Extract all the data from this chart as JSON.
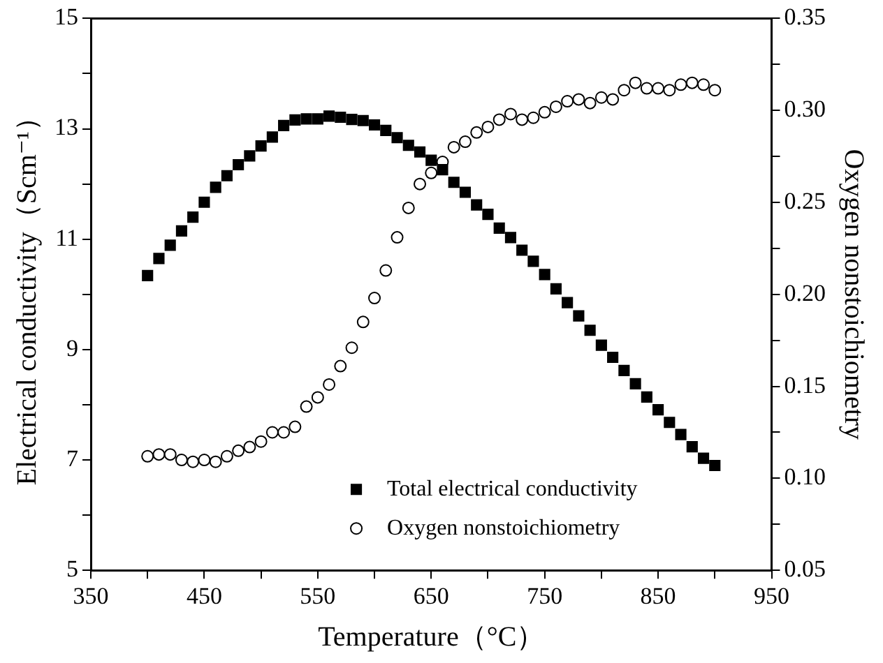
{
  "chart_data": {
    "type": "scatter",
    "xlabel": "Temperature（°C）",
    "ylabel": "Electrical conductivity（Scm⁻¹）",
    "y2label": "Oxygen nonstoichiometry",
    "x": [
      400,
      410,
      420,
      430,
      440,
      450,
      460,
      470,
      480,
      490,
      500,
      510,
      520,
      530,
      540,
      550,
      560,
      570,
      580,
      590,
      600,
      610,
      620,
      630,
      640,
      650,
      660,
      670,
      680,
      690,
      700,
      710,
      720,
      730,
      740,
      750,
      760,
      770,
      780,
      790,
      800,
      810,
      820,
      830,
      840,
      850,
      860,
      870,
      880,
      890,
      900
    ],
    "series": [
      {
        "name": "Total electrical conductivity",
        "color": "#000000",
        "marker": "square",
        "values": [
          10.34,
          10.65,
          10.89,
          11.15,
          11.4,
          11.67,
          11.94,
          12.15,
          12.35,
          12.51,
          12.69,
          12.85,
          13.06,
          13.16,
          13.18,
          13.18,
          13.23,
          13.21,
          13.17,
          13.15,
          13.07,
          12.97,
          12.84,
          12.7,
          12.58,
          12.43,
          12.26,
          12.03,
          11.85,
          11.62,
          11.45,
          11.2,
          11.03,
          10.8,
          10.6,
          10.36,
          10.1,
          9.85,
          9.61,
          9.35,
          9.08,
          8.86,
          8.62,
          8.38,
          8.14,
          7.91,
          7.68,
          7.46,
          7.24,
          7.03,
          6.9
        ]
      },
      {
        "name": "Oxygen nonstoichiometry",
        "color": "#000000",
        "marker": "circle",
        "axis": "y2",
        "values": [
          0.112,
          0.113,
          0.113,
          0.11,
          0.109,
          0.11,
          0.109,
          0.112,
          0.115,
          0.117,
          0.12,
          0.125,
          0.125,
          0.128,
          0.139,
          0.144,
          0.151,
          0.161,
          0.171,
          0.185,
          0.198,
          0.213,
          0.231,
          0.247,
          0.26,
          0.266,
          0.272,
          0.28,
          0.283,
          0.288,
          0.291,
          0.295,
          0.298,
          0.295,
          0.296,
          0.299,
          0.302,
          0.305,
          0.306,
          0.304,
          0.307,
          0.306,
          0.311,
          0.315,
          0.312,
          0.312,
          0.311,
          0.314,
          0.315,
          0.314,
          0.311
        ]
      }
    ],
    "xlim": [
      350,
      950
    ],
    "xticks": [
      350,
      {
        "value": 400,
        "label": null
      },
      450,
      {
        "value": 500,
        "label": null
      },
      550,
      {
        "value": 600,
        "label": null
      },
      650,
      {
        "value": 700,
        "label": null
      },
      750,
      {
        "value": 800,
        "label": null
      },
      850,
      {
        "value": 900,
        "label": null
      },
      950
    ],
    "ylim": [
      5,
      15
    ],
    "yticks": [
      5,
      {
        "value": 6,
        "label": null
      },
      7,
      {
        "value": 8,
        "label": null
      },
      9,
      {
        "value": 10,
        "label": null
      },
      11,
      {
        "value": 12,
        "label": null
      },
      13,
      {
        "value": 14,
        "label": null
      },
      15
    ],
    "y2lim": [
      0.05,
      0.35
    ],
    "y2ticks": [
      0.05,
      {
        "value": 0.075,
        "label": null
      },
      {
        "value": 0.1,
        "label": "0.10"
      },
      {
        "value": 0.125,
        "label": null
      },
      0.15,
      {
        "value": 0.175,
        "label": null
      },
      {
        "value": 0.2,
        "label": "0.20"
      },
      {
        "value": 0.225,
        "label": null
      },
      0.25,
      {
        "value": 0.275,
        "label": null
      },
      {
        "value": 0.3,
        "label": "0.30"
      },
      {
        "value": 0.325,
        "label": null
      },
      0.35
    ],
    "grid": false,
    "legend": "bottom"
  }
}
